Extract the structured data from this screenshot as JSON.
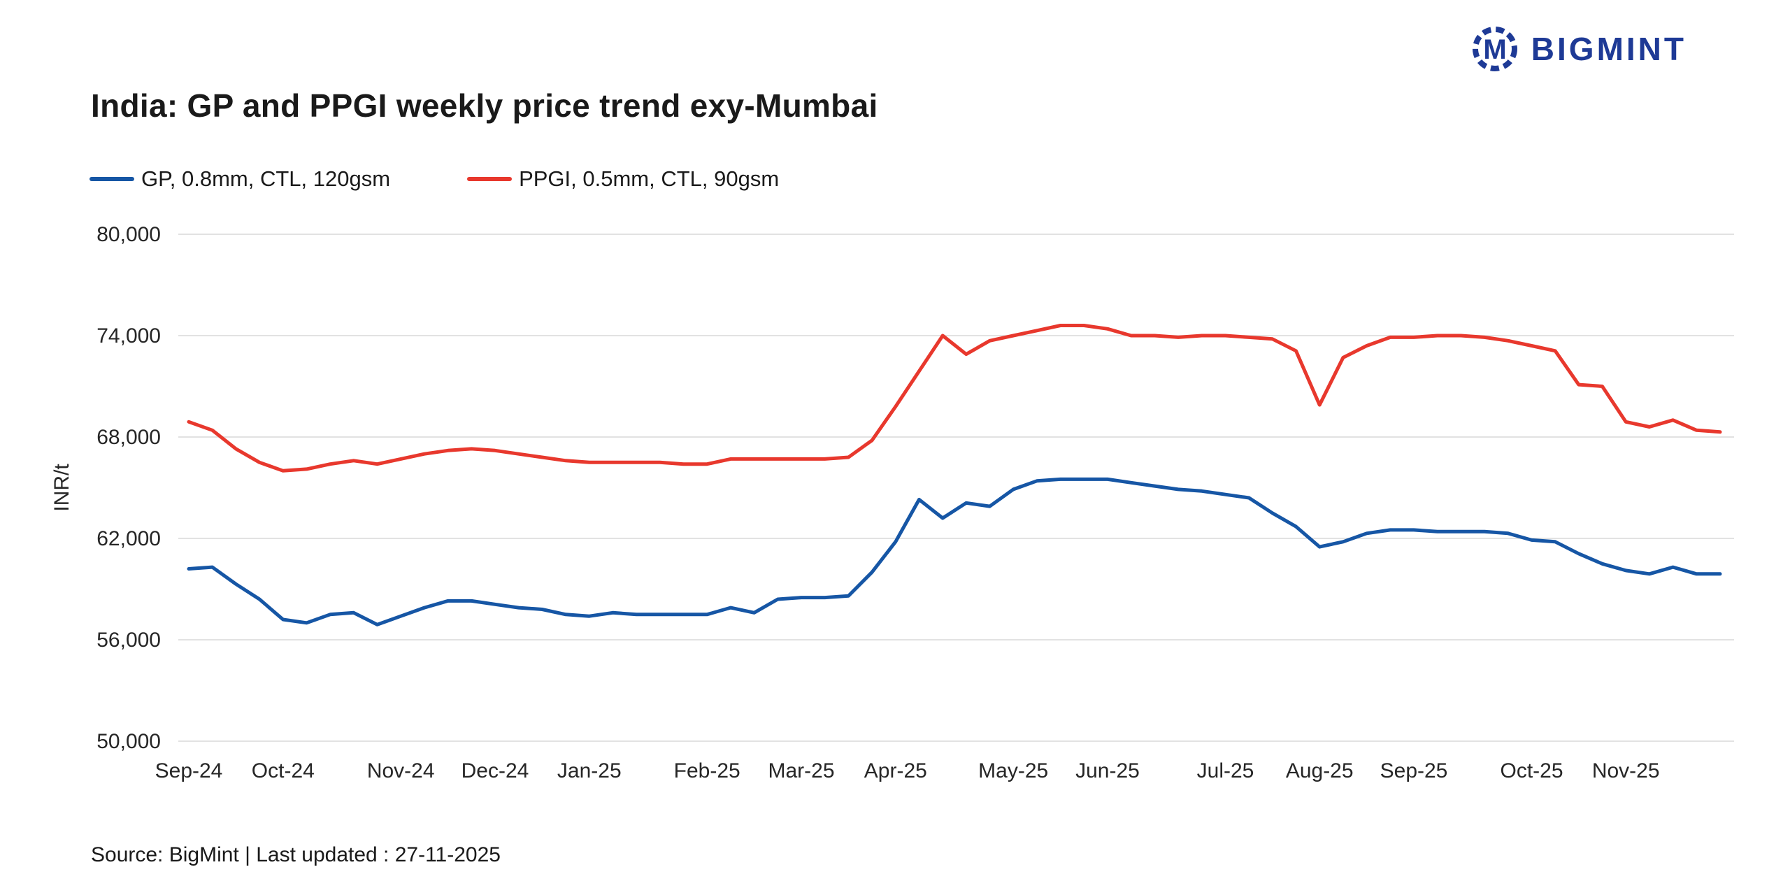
{
  "brand": {
    "name": "BIGMINT",
    "logo_letter": "M",
    "color": "#1e3a96"
  },
  "footer": {
    "source": "Source: BigMint | Last updated : 27-11-2025"
  },
  "chart_data": {
    "type": "line",
    "title": "India: GP and PPGI weekly price trend exy-Mumbai",
    "xlabel": "",
    "ylabel": "INR/t",
    "ylim": [
      50000,
      80000
    ],
    "y_ticks": [
      50000,
      56000,
      62000,
      68000,
      74000,
      80000
    ],
    "grid": "horizontal",
    "grid_color": "#d9d9d9",
    "legend_position": "top-left",
    "x_unit": "week",
    "x_ticks": [
      {
        "label": "Sep-24",
        "week": 0
      },
      {
        "label": "Oct-24",
        "week": 4
      },
      {
        "label": "Nov-24",
        "week": 9
      },
      {
        "label": "Dec-24",
        "week": 13
      },
      {
        "label": "Jan-25",
        "week": 17
      },
      {
        "label": "Feb-25",
        "week": 22
      },
      {
        "label": "Mar-25",
        "week": 26
      },
      {
        "label": "Apr-25",
        "week": 30
      },
      {
        "label": "May-25",
        "week": 35
      },
      {
        "label": "Jun-25",
        "week": 39
      },
      {
        "label": "Jul-25",
        "week": 44
      },
      {
        "label": "Aug-25",
        "week": 48
      },
      {
        "label": "Sep-25",
        "week": 52
      },
      {
        "label": "Oct-25",
        "week": 57
      },
      {
        "label": "Nov-25",
        "week": 61
      }
    ],
    "series": [
      {
        "name": "GP, 0.8mm, CTL, 120gsm",
        "color": "#1656a5",
        "values": [
          60200,
          60300,
          59300,
          58400,
          57200,
          57000,
          57500,
          57600,
          56900,
          57400,
          57900,
          58300,
          58300,
          58100,
          57900,
          57800,
          57500,
          57400,
          57600,
          57500,
          57500,
          57500,
          57500,
          57900,
          57600,
          58400,
          58500,
          58500,
          58600,
          60000,
          61800,
          64300,
          63200,
          64100,
          63900,
          64900,
          65400,
          65500,
          65500,
          65500,
          65300,
          65100,
          64900,
          64800,
          64600,
          64400,
          63500,
          62700,
          61500,
          61800,
          62300,
          62500,
          62500,
          62400,
          62400,
          62400,
          62300,
          61900,
          61800,
          61100,
          60500,
          60100,
          59900,
          60300,
          59900,
          59900
        ]
      },
      {
        "name": "PPGI, 0.5mm, CTL, 90gsm",
        "color": "#e8382d",
        "values": [
          68900,
          68400,
          67300,
          66500,
          66000,
          66100,
          66400,
          66600,
          66400,
          66700,
          67000,
          67200,
          67300,
          67200,
          67000,
          66800,
          66600,
          66500,
          66500,
          66500,
          66500,
          66400,
          66400,
          66700,
          66700,
          66700,
          66700,
          66700,
          66800,
          67800,
          69800,
          71900,
          74000,
          72900,
          73700,
          74000,
          74300,
          74600,
          74600,
          74400,
          74000,
          74000,
          73900,
          74000,
          74000,
          73900,
          73800,
          73100,
          69900,
          72700,
          73400,
          73900,
          73900,
          74000,
          74000,
          73900,
          73700,
          73400,
          73100,
          71100,
          71000,
          68900,
          68600,
          69000,
          68400,
          68300
        ]
      }
    ]
  }
}
